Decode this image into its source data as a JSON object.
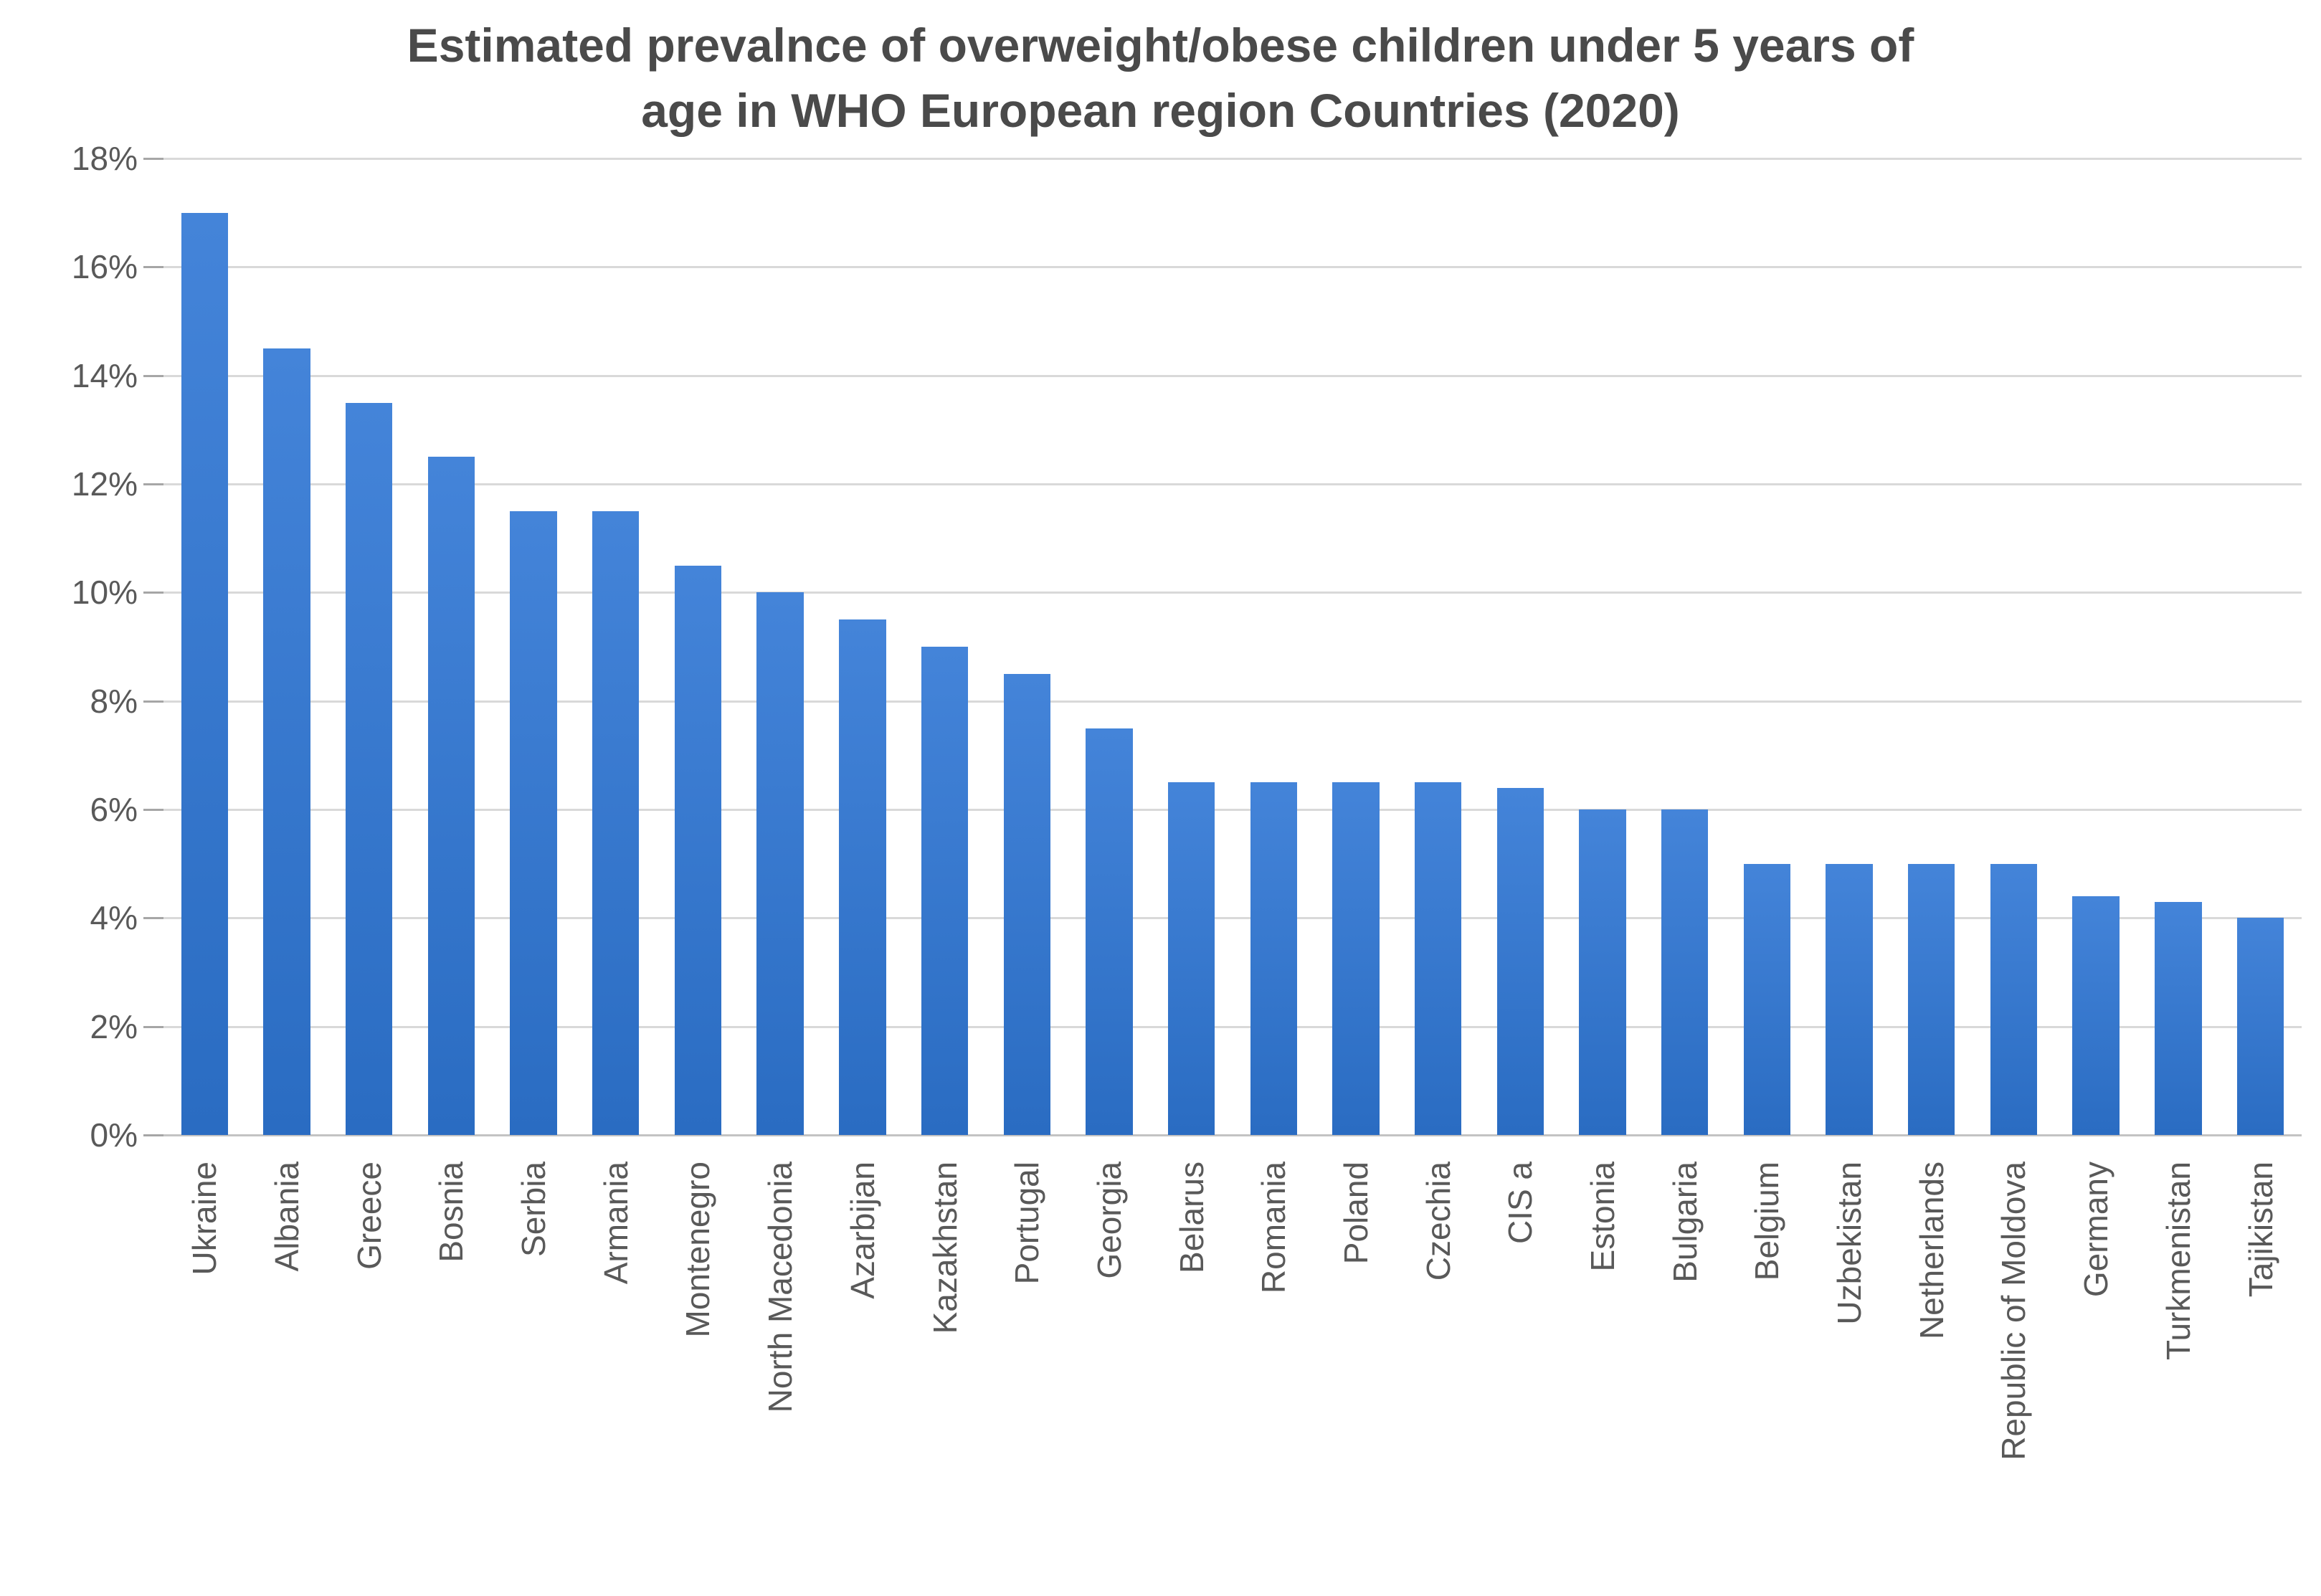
{
  "chart_data": {
    "type": "bar",
    "title_line1": "Estimated prevalnce of overweight/obese children under 5 years of",
    "title_line2": "age in WHO European region Countries (2020)",
    "categories": [
      "Ukraine",
      "Albania",
      "Greece",
      "Bosnia",
      "Serbia",
      "Armania",
      "Montenegro",
      "North Macedonia",
      "Azarbijan",
      "Kazakhstan",
      "Portugal",
      "Georgia",
      "Belarus",
      "Romania",
      "Poland",
      "Czechia",
      "CIS a",
      "Estonia",
      "Bulgaria",
      "Belgium",
      "Uzbekistan",
      "Netherlands",
      "Republic of Moldova",
      "Germany",
      "Turkmenistan",
      "Tajikistan"
    ],
    "values": [
      17.0,
      14.5,
      13.5,
      12.5,
      11.5,
      11.5,
      10.5,
      10.0,
      9.5,
      9.0,
      8.5,
      7.5,
      6.5,
      6.5,
      6.5,
      6.5,
      6.4,
      6.0,
      6.0,
      5.0,
      5.0,
      5.0,
      5.0,
      4.4,
      4.3,
      4.0
    ],
    "unit": "%",
    "y_axis": {
      "min": 0,
      "max": 18,
      "step": 2,
      "tick_labels": [
        "0%",
        "2%",
        "4%",
        "6%",
        "8%",
        "10%",
        "12%",
        "14%",
        "16%",
        "18%"
      ]
    },
    "grid": true,
    "legend_position": "none",
    "xlabel": "",
    "ylabel": "",
    "colors": {
      "bar_top": "#4484d9",
      "bar_bottom": "#2a6cc2",
      "gridline": "#d9d9d9",
      "axis_line": "#c3c3c3",
      "tick_mark": "#a6a6a6",
      "text": "#595959",
      "title_text": "#4a4a4a",
      "background": "#ffffff"
    }
  }
}
